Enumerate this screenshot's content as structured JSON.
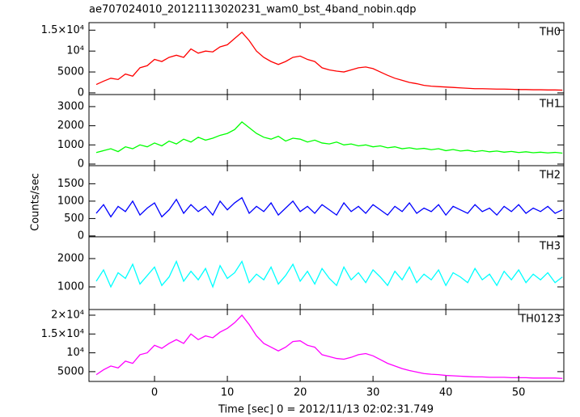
{
  "chart_data": [
    {
      "type": "line",
      "title": "ae707024010_20121113020231_wam0_bst_4band_nobin.qdp",
      "xlim": [
        -9,
        56.2
      ],
      "ylim": [
        -400,
        16800
      ],
      "yticks": [
        0,
        5000,
        {
          "value": 10000,
          "label": "10⁴"
        },
        {
          "value": 15000,
          "label": "1.5×10⁴"
        }
      ],
      "x": [
        -8,
        -7,
        -6,
        -5,
        -4,
        -3,
        -2,
        -1,
        0,
        1,
        2,
        3,
        4,
        5,
        6,
        7,
        8,
        9,
        10,
        11,
        12,
        13,
        14,
        15,
        16,
        17,
        18,
        19,
        20,
        21,
        22,
        23,
        24,
        25,
        26,
        27,
        28,
        29,
        30,
        31,
        32,
        33,
        34,
        35,
        36,
        37,
        38,
        39,
        40,
        41,
        42,
        43,
        44,
        45,
        46,
        47,
        48,
        49,
        50,
        51,
        52,
        53,
        54,
        55,
        56
      ],
      "series": [
        {
          "name": "TH0",
          "color": "#ff0000",
          "values": [
            2000,
            2800,
            3500,
            3200,
            4500,
            4000,
            6000,
            6500,
            8000,
            7500,
            8500,
            9000,
            8500,
            10500,
            9500,
            10000,
            9800,
            11000,
            11500,
            13000,
            14500,
            12500,
            10000,
            8500,
            7500,
            6800,
            7500,
            8500,
            8800,
            8000,
            7500,
            6000,
            5500,
            5200,
            5000,
            5500,
            6000,
            6200,
            5800,
            5000,
            4200,
            3500,
            3000,
            2500,
            2200,
            1800,
            1600,
            1500,
            1400,
            1300,
            1200,
            1100,
            1000,
            1000,
            950,
            900,
            900,
            850,
            800,
            800,
            750,
            750,
            700,
            700,
            650
          ]
        }
      ]
    },
    {
      "type": "line",
      "xlim": [
        -9,
        56.2
      ],
      "ylim": [
        -85,
        3630
      ],
      "yticks": [
        0,
        1000,
        2000,
        3000
      ],
      "x": [
        -8,
        -7,
        -6,
        -5,
        -4,
        -3,
        -2,
        -1,
        0,
        1,
        2,
        3,
        4,
        5,
        6,
        7,
        8,
        9,
        10,
        11,
        12,
        13,
        14,
        15,
        16,
        17,
        18,
        19,
        20,
        21,
        22,
        23,
        24,
        25,
        26,
        27,
        28,
        29,
        30,
        31,
        32,
        33,
        34,
        35,
        36,
        37,
        38,
        39,
        40,
        41,
        42,
        43,
        44,
        45,
        46,
        47,
        48,
        49,
        50,
        51,
        52,
        53,
        54,
        55,
        56
      ],
      "series": [
        {
          "name": "TH1",
          "color": "#00ff00",
          "values": [
            600,
            700,
            800,
            650,
            900,
            800,
            1000,
            900,
            1100,
            950,
            1200,
            1050,
            1300,
            1150,
            1400,
            1250,
            1350,
            1500,
            1600,
            1800,
            2200,
            1900,
            1600,
            1400,
            1300,
            1450,
            1200,
            1350,
            1300,
            1150,
            1250,
            1100,
            1050,
            1150,
            1000,
            1050,
            950,
            1000,
            900,
            950,
            850,
            900,
            800,
            850,
            780,
            820,
            750,
            800,
            700,
            760,
            680,
            720,
            650,
            700,
            640,
            680,
            620,
            660,
            600,
            640,
            590,
            620,
            580,
            610,
            570
          ]
        }
      ]
    },
    {
      "type": "line",
      "ylabel": "Counts/sec",
      "xlim": [
        -9,
        56.2
      ],
      "ylim": [
        -25,
        2020
      ],
      "yticks": [
        0,
        500,
        1000,
        1500
      ],
      "x": [
        -8,
        -7,
        -6,
        -5,
        -4,
        -3,
        -2,
        -1,
        0,
        1,
        2,
        3,
        4,
        5,
        6,
        7,
        8,
        9,
        10,
        11,
        12,
        13,
        14,
        15,
        16,
        17,
        18,
        19,
        20,
        21,
        22,
        23,
        24,
        25,
        26,
        27,
        28,
        29,
        30,
        31,
        32,
        33,
        34,
        35,
        36,
        37,
        38,
        39,
        40,
        41,
        42,
        43,
        44,
        45,
        46,
        47,
        48,
        49,
        50,
        51,
        52,
        53,
        54,
        55,
        56
      ],
      "series": [
        {
          "name": "TH2",
          "color": "#0000ff",
          "values": [
            650,
            900,
            550,
            850,
            700,
            1000,
            600,
            800,
            950,
            550,
            750,
            1050,
            650,
            900,
            700,
            850,
            600,
            1000,
            750,
            950,
            1100,
            650,
            850,
            700,
            950,
            600,
            800,
            1000,
            700,
            850,
            650,
            900,
            750,
            600,
            950,
            700,
            850,
            650,
            900,
            750,
            600,
            850,
            700,
            950,
            650,
            800,
            700,
            900,
            600,
            850,
            750,
            650,
            900,
            700,
            800,
            600,
            850,
            700,
            900,
            650,
            800,
            700,
            850,
            650,
            750
          ]
        }
      ]
    },
    {
      "type": "line",
      "xlim": [
        -9,
        56.2
      ],
      "ylim": [
        200,
        2770
      ],
      "yticks": [
        1000,
        2000
      ],
      "x": [
        -8,
        -7,
        -6,
        -5,
        -4,
        -3,
        -2,
        -1,
        0,
        1,
        2,
        3,
        4,
        5,
        6,
        7,
        8,
        9,
        10,
        11,
        12,
        13,
        14,
        15,
        16,
        17,
        18,
        19,
        20,
        21,
        22,
        23,
        24,
        25,
        26,
        27,
        28,
        29,
        30,
        31,
        32,
        33,
        34,
        35,
        36,
        37,
        38,
        39,
        40,
        41,
        42,
        43,
        44,
        45,
        46,
        47,
        48,
        49,
        50,
        51,
        52,
        53,
        54,
        55,
        56
      ],
      "series": [
        {
          "name": "TH3",
          "color": "#00ffff",
          "values": [
            1200,
            1600,
            1000,
            1500,
            1300,
            1800,
            1100,
            1400,
            1700,
            1050,
            1350,
            1900,
            1200,
            1550,
            1250,
            1650,
            1000,
            1750,
            1300,
            1500,
            1900,
            1150,
            1450,
            1250,
            1700,
            1100,
            1400,
            1800,
            1200,
            1550,
            1100,
            1650,
            1300,
            1050,
            1700,
            1250,
            1500,
            1150,
            1600,
            1350,
            1050,
            1550,
            1250,
            1700,
            1150,
            1450,
            1250,
            1600,
            1050,
            1500,
            1350,
            1150,
            1650,
            1250,
            1450,
            1050,
            1550,
            1250,
            1600,
            1150,
            1450,
            1250,
            1500,
            1150,
            1350
          ]
        }
      ]
    },
    {
      "type": "line",
      "xlabel": "Time [sec] 0 = 2012/11/13 02:02:31.749",
      "xlim": [
        -9,
        56.2
      ],
      "ylim": [
        2400,
        21500
      ],
      "xticks": [
        0,
        10,
        20,
        30,
        40,
        50
      ],
      "yticks": [
        5000,
        {
          "value": 10000,
          "label": "10⁴"
        },
        {
          "value": 15000,
          "label": "1.5×10⁴"
        },
        {
          "value": 20000,
          "label": "2×10⁴"
        }
      ],
      "x": [
        -8,
        -7,
        -6,
        -5,
        -4,
        -3,
        -2,
        -1,
        0,
        1,
        2,
        3,
        4,
        5,
        6,
        7,
        8,
        9,
        10,
        11,
        12,
        13,
        14,
        15,
        16,
        17,
        18,
        19,
        20,
        21,
        22,
        23,
        24,
        25,
        26,
        27,
        28,
        29,
        30,
        31,
        32,
        33,
        34,
        35,
        36,
        37,
        38,
        39,
        40,
        41,
        42,
        43,
        44,
        45,
        46,
        47,
        48,
        49,
        50,
        51,
        52,
        53,
        54,
        55,
        56
      ],
      "series": [
        {
          "name": "TH0123",
          "color": "#ff00ff",
          "values": [
            4200,
            5500,
            6500,
            6000,
            7800,
            7200,
            9500,
            10000,
            12000,
            11200,
            12500,
            13500,
            12500,
            15000,
            13500,
            14500,
            14000,
            15500,
            16500,
            18000,
            20000,
            17500,
            14500,
            12500,
            11500,
            10500,
            11500,
            13000,
            13200,
            12000,
            11500,
            9500,
            9000,
            8500,
            8300,
            8800,
            9500,
            9800,
            9200,
            8200,
            7200,
            6500,
            5800,
            5300,
            4900,
            4500,
            4300,
            4200,
            4000,
            3900,
            3800,
            3700,
            3600,
            3600,
            3500,
            3500,
            3500,
            3400,
            3400,
            3400,
            3300,
            3300,
            3300,
            3300,
            3200
          ]
        }
      ]
    }
  ]
}
